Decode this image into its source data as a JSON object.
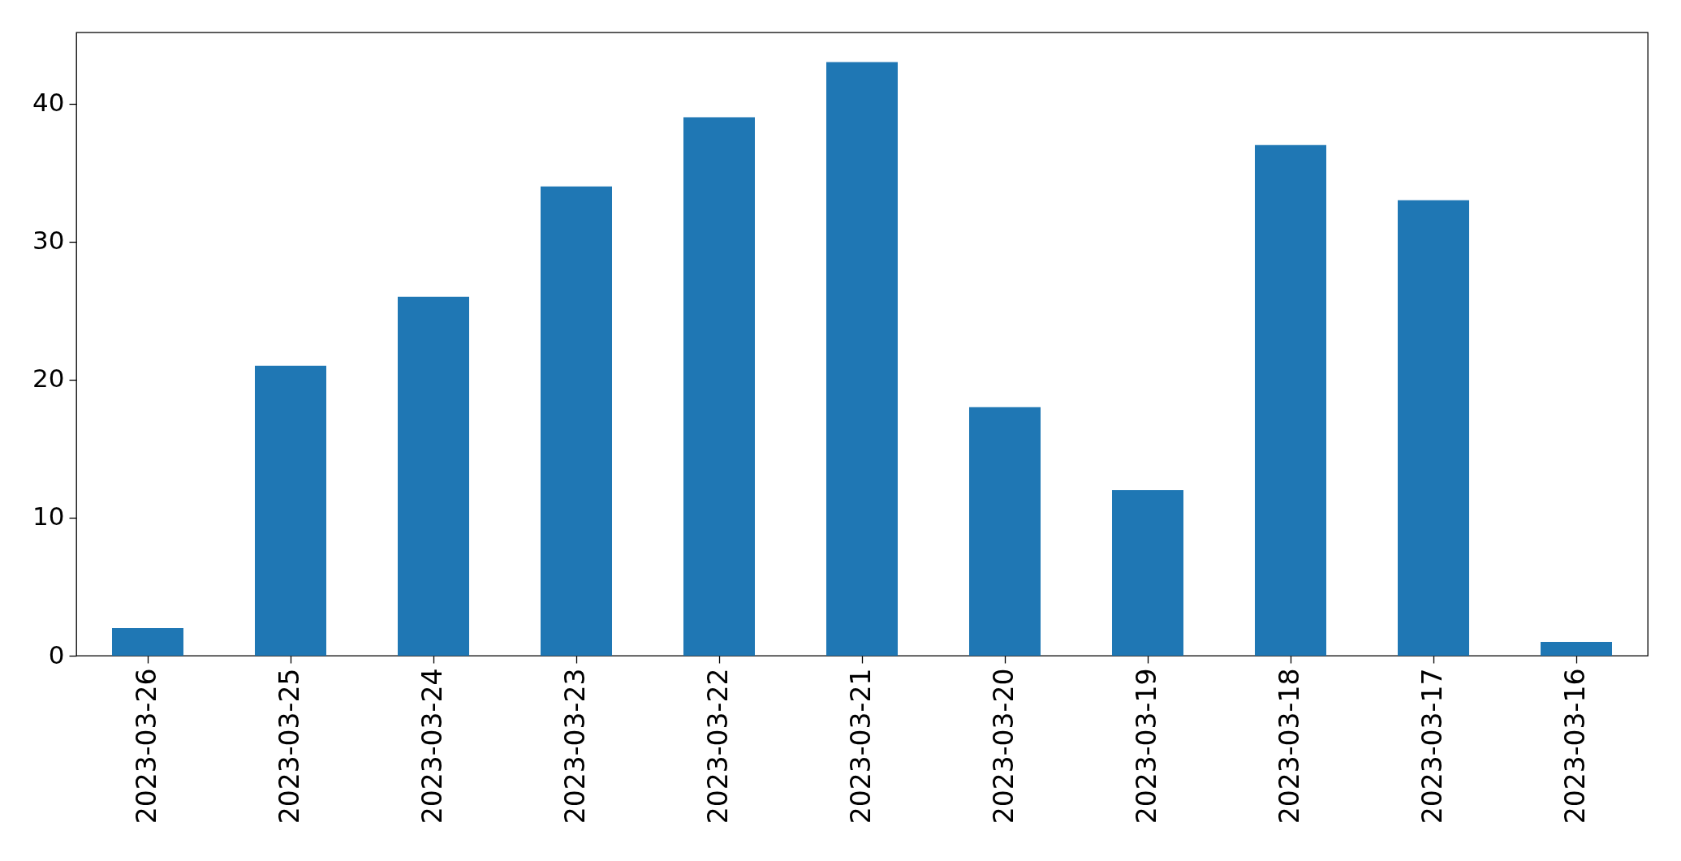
{
  "chart_data": {
    "type": "bar",
    "categories": [
      "2023-03-26",
      "2023-03-25",
      "2023-03-24",
      "2023-03-23",
      "2023-03-22",
      "2023-03-21",
      "2023-03-20",
      "2023-03-19",
      "2023-03-18",
      "2023-03-17",
      "2023-03-16"
    ],
    "values": [
      2,
      21,
      26,
      34,
      39,
      43,
      18,
      12,
      37,
      33,
      1
    ],
    "color": "#1f77b4",
    "ylim": [
      0,
      45.15
    ],
    "yticks": [
      0,
      10,
      20,
      30,
      40
    ],
    "grid": false
  }
}
